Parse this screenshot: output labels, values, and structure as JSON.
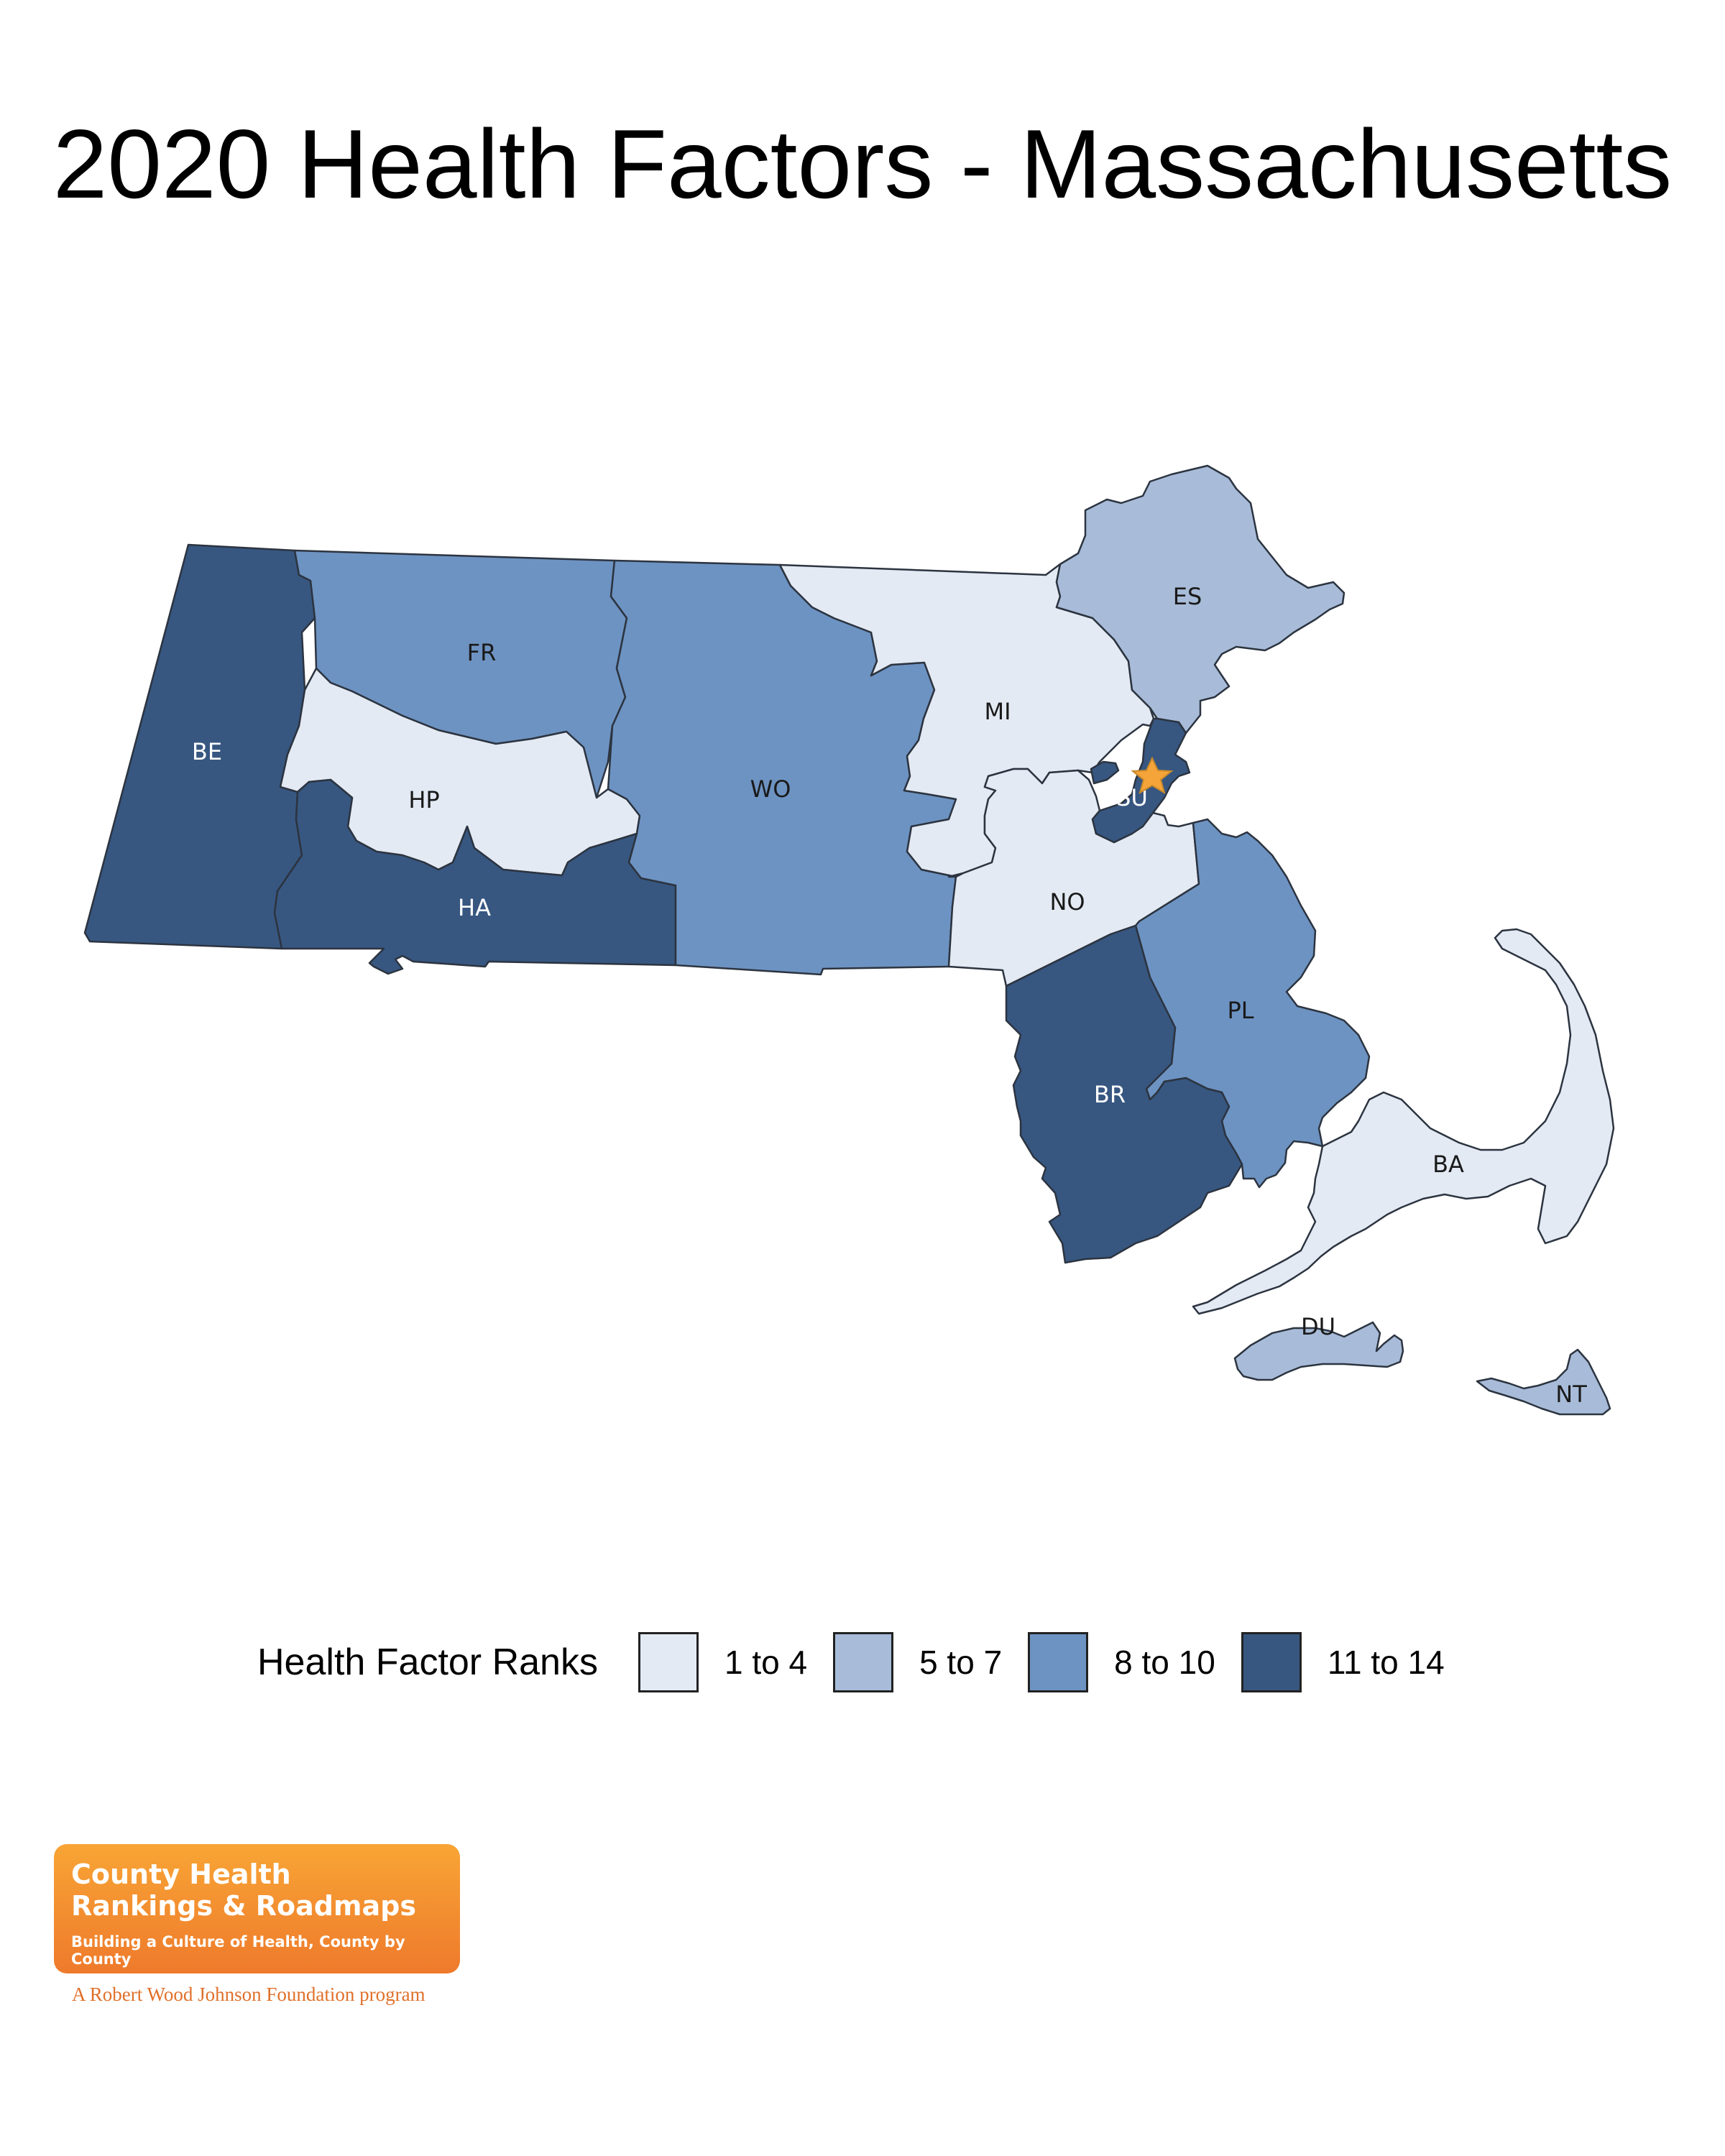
{
  "title": "2020 Health Factors - Massachusetts",
  "colors": {
    "rank_1_4": "#e3eaf4",
    "rank_5_7": "#a8bcd9",
    "rank_8_10": "#6d93c2",
    "rank_11_14": "#375781",
    "border": "#2c3440",
    "capital_star": "#f5a43a",
    "logo_orange": "#f08a30"
  },
  "legend": {
    "title": "Health Factor Ranks",
    "items": [
      {
        "label": "1 to 4",
        "color": "#e3eaf4"
      },
      {
        "label": "5 to 7",
        "color": "#a8bcd9"
      },
      {
        "label": "8 to 10",
        "color": "#6d93c2"
      },
      {
        "label": "11 to 14",
        "color": "#375781"
      }
    ]
  },
  "counties": [
    {
      "code": "BE",
      "rank_group": "11 to 14"
    },
    {
      "code": "FR",
      "rank_group": "8 to 10"
    },
    {
      "code": "HP",
      "rank_group": "1 to 4"
    },
    {
      "code": "HA",
      "rank_group": "11 to 14"
    },
    {
      "code": "WO",
      "rank_group": "8 to 10"
    },
    {
      "code": "MI",
      "rank_group": "1 to 4"
    },
    {
      "code": "ES",
      "rank_group": "5 to 7"
    },
    {
      "code": "SU",
      "rank_group": "11 to 14"
    },
    {
      "code": "NO",
      "rank_group": "1 to 4"
    },
    {
      "code": "PL",
      "rank_group": "8 to 10"
    },
    {
      "code": "BR",
      "rank_group": "11 to 14"
    },
    {
      "code": "BA",
      "rank_group": "1 to 4"
    },
    {
      "code": "DU",
      "rank_group": "5 to 7"
    },
    {
      "code": "NT",
      "rank_group": "5 to 7"
    }
  ],
  "capital_marker": "star-icon",
  "logo": {
    "line1": "County Health",
    "line2": "Rankings & Roadmaps",
    "tagline": "Building a Culture of Health, County by County",
    "program": "A Robert Wood Johnson Foundation program"
  }
}
